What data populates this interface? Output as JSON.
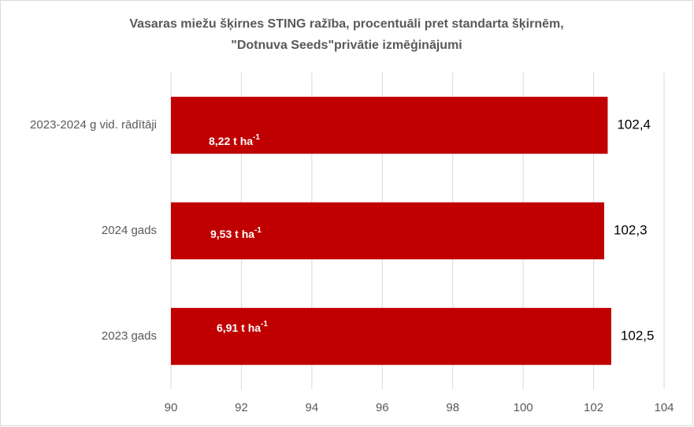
{
  "chart_data": {
    "type": "barh",
    "title": [
      "Vasaras miežu šķirnes STING ražība, procentuāli pret standarta šķirnēm,",
      "\"Dotnuva Seeds\"privātie izmēģinājumi"
    ],
    "categories": [
      "2023-2024 g vid. rādītāji",
      "2024 gads",
      "2023 gads"
    ],
    "values": [
      102.4,
      102.3,
      102.5
    ],
    "value_labels": [
      "102,4",
      "102,3",
      "102,5"
    ],
    "annotations": [
      {
        "text": "8,22 t ha",
        "sup": "-1"
      },
      {
        "text": "9,53  t ha",
        "sup": "-1"
      },
      {
        "text": "6,91 t ha",
        "sup": "-1"
      }
    ],
    "color": "#c00000",
    "xlim": [
      90,
      104
    ],
    "xticks": [
      90,
      92,
      94,
      96,
      98,
      100,
      102,
      104
    ],
    "grid": true
  }
}
